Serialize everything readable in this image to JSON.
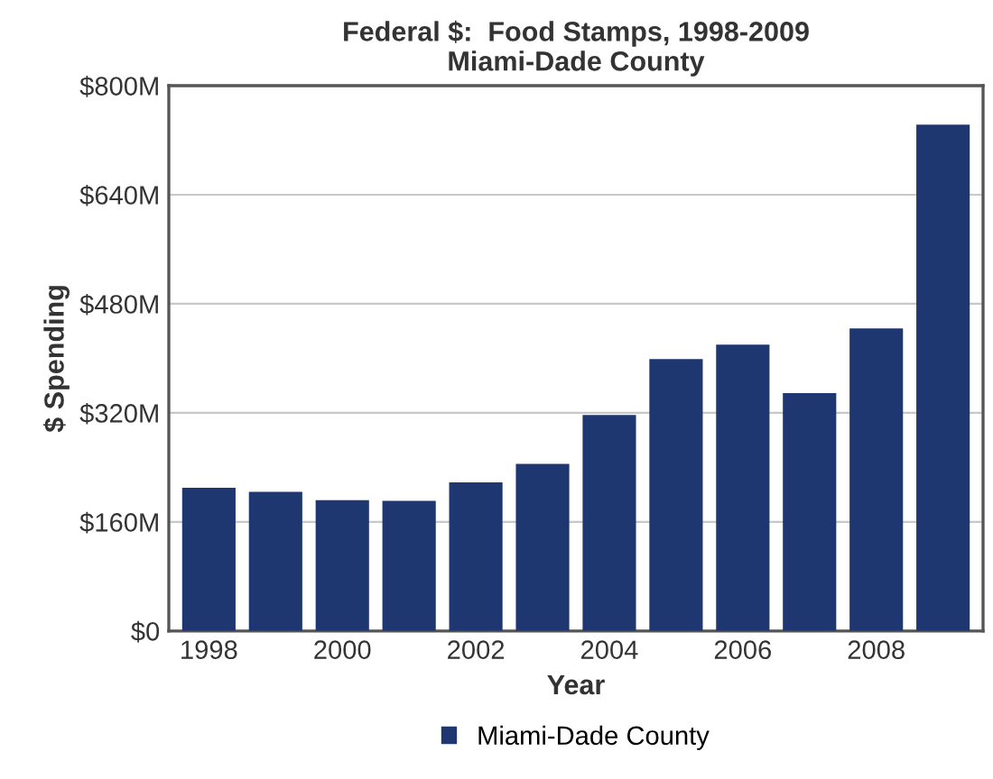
{
  "chart_data": {
    "type": "bar",
    "title": "Federal $:  Food Stamps, 1998-2009\nMiami-Dade County",
    "xlabel": "Year",
    "ylabel": "$ Spending",
    "categories": [
      "1998",
      null,
      "2000",
      null,
      "2002",
      null,
      "2004",
      null,
      "2006",
      null,
      "2008",
      null
    ],
    "series": [
      {
        "name": "Miami-Dade County",
        "color": "#1f3770",
        "values": [
          210,
          204,
          192,
          191,
          218,
          245,
          317,
          399,
          420,
          349,
          444,
          743
        ]
      }
    ],
    "ylim": [
      0,
      800
    ],
    "yticks": [
      {
        "value": 0,
        "label": "$0"
      },
      {
        "value": 160,
        "label": "$160M"
      },
      {
        "value": 320,
        "label": "$320M"
      },
      {
        "value": 480,
        "label": "$480M"
      },
      {
        "value": 640,
        "label": "$640M"
      },
      {
        "value": 800,
        "label": "$800M"
      }
    ],
    "grid": "y",
    "legend": "bottom"
  }
}
